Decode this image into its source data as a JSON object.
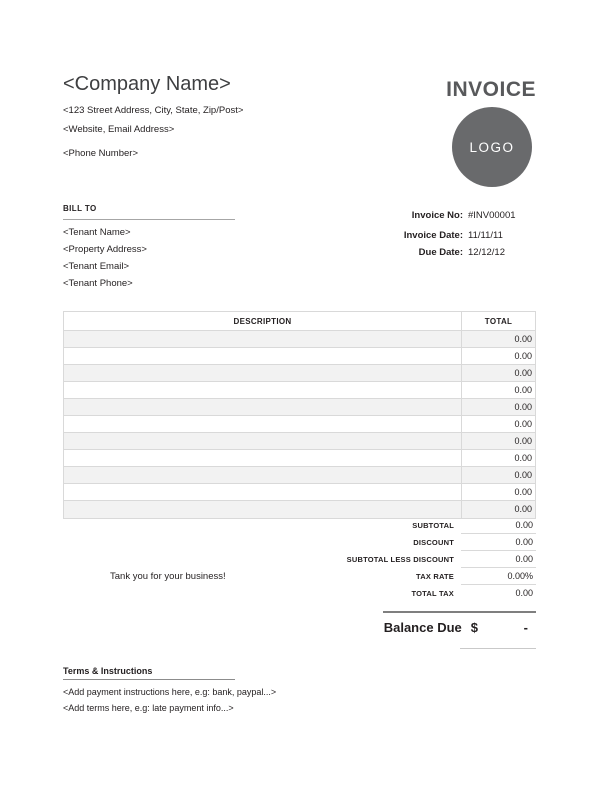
{
  "company": {
    "name": "<Company Name>",
    "address": "<123 Street Address, City, State, Zip/Post>",
    "website": "<Website, Email Address>",
    "phone": "<Phone Number>"
  },
  "header": {
    "title": "INVOICE",
    "logo_text": "LOGO"
  },
  "bill_to": {
    "label": "BILL TO",
    "lines": [
      "<Tenant Name>",
      "<Property Address>",
      "<Tenant Email>",
      "<Tenant Phone>"
    ]
  },
  "invoice_meta": {
    "rows": [
      {
        "label": "Invoice No:",
        "value": "#INV00001"
      },
      {
        "label": "Invoice Date:",
        "value": "11/11/11"
      },
      {
        "label": "Due Date:",
        "value": "12/12/12"
      }
    ]
  },
  "table": {
    "headers": {
      "description": "DESCRIPTION",
      "total": "TOTAL"
    },
    "rows": [
      {
        "description": "",
        "total": "0.00"
      },
      {
        "description": "",
        "total": "0.00"
      },
      {
        "description": "",
        "total": "0.00"
      },
      {
        "description": "",
        "total": "0.00"
      },
      {
        "description": "",
        "total": "0.00"
      },
      {
        "description": "",
        "total": "0.00"
      },
      {
        "description": "",
        "total": "0.00"
      },
      {
        "description": "",
        "total": "0.00"
      },
      {
        "description": "",
        "total": "0.00"
      },
      {
        "description": "",
        "total": "0.00"
      },
      {
        "description": "",
        "total": "0.00"
      }
    ]
  },
  "summary": {
    "rows": [
      {
        "label": "SUBTOTAL",
        "value": "0.00"
      },
      {
        "label": "DISCOUNT",
        "value": "0.00"
      },
      {
        "label": "SUBTOTAL LESS DISCOUNT",
        "value": "0.00"
      },
      {
        "label": "TAX RATE",
        "value": "0.00%"
      },
      {
        "label": "TOTAL TAX",
        "value": "0.00"
      }
    ]
  },
  "thanks_message": "Tank you for your business!",
  "balance_due": {
    "label": "Balance Due",
    "currency": "$",
    "value": "-"
  },
  "terms": {
    "title": "Terms & Instructions",
    "lines": [
      "<Add payment instructions here, e.g: bank, paypal...>",
      "<Add terms here, e.g: late payment info...>"
    ]
  },
  "colors": {
    "title_gray": "#58595b",
    "logo_circle": "#696a6c",
    "row_stripe": "#f2f2f2",
    "table_border": "#d9d9d9",
    "balance_rule": "#7f7f7f"
  }
}
